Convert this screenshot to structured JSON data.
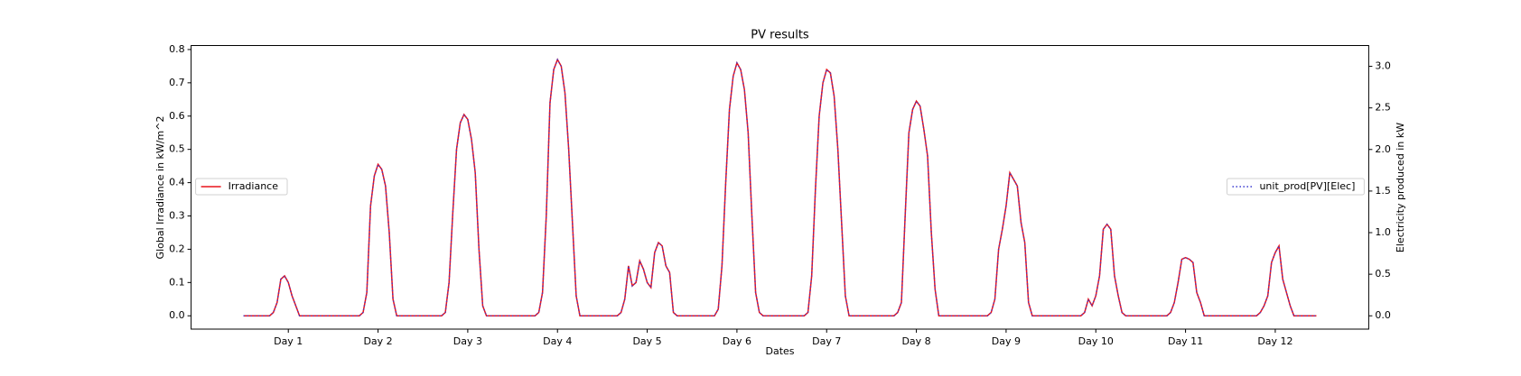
{
  "chart_data": {
    "type": "line",
    "title": "PV results",
    "x_label": "Dates",
    "y_label": "Global Irradiance in kW/m^2",
    "y2_label": "Electricity produced in kW",
    "xlim": [
      -14,
      301
    ],
    "xticks": [
      {
        "value": 12,
        "label": "Day 1"
      },
      {
        "value": 36,
        "label": "Day 2"
      },
      {
        "value": 60,
        "label": "Day 3"
      },
      {
        "value": 84,
        "label": "Day 4"
      },
      {
        "value": 108,
        "label": "Day 5"
      },
      {
        "value": 132,
        "label": "Day 6"
      },
      {
        "value": 156,
        "label": "Day 7"
      },
      {
        "value": 180,
        "label": "Day 8"
      },
      {
        "value": 204,
        "label": "Day 9"
      },
      {
        "value": 228,
        "label": "Day 10"
      },
      {
        "value": 252,
        "label": "Day 11"
      },
      {
        "value": 276,
        "label": "Day 12"
      }
    ],
    "ylim": [
      -0.04,
      0.812
    ],
    "yticks": [
      {
        "value": 0,
        "label": "0.0"
      },
      0.1,
      0.2,
      0.3,
      0.4,
      0.5,
      0.6,
      0.7,
      0.8
    ],
    "y2lim": [
      -0.16,
      3.25
    ],
    "y2ticks": [
      {
        "value": 0,
        "label": "0.0"
      },
      0.5,
      {
        "value": 1,
        "label": "1.0"
      },
      1.5,
      {
        "value": 2,
        "label": "2.0"
      },
      2.5,
      {
        "value": 3,
        "label": "3.0"
      }
    ],
    "series": [
      {
        "name": "Irradiance",
        "color": "#e8141c",
        "style": "solid",
        "axis": "y",
        "legend": "center left",
        "values": [
          0,
          0,
          0,
          0,
          0,
          0,
          0,
          0,
          0.01,
          0.04,
          0.11,
          0.12,
          0.1,
          0.06,
          0.03,
          0,
          0,
          0,
          0,
          0,
          0,
          0,
          0,
          0,
          0,
          0,
          0,
          0,
          0,
          0,
          0,
          0,
          0.01,
          0.07,
          0.33,
          0.42,
          0.455,
          0.44,
          0.39,
          0.25,
          0.05,
          0,
          0,
          0,
          0,
          0,
          0,
          0,
          0,
          0,
          0,
          0,
          0,
          0,
          0.01,
          0.1,
          0.31,
          0.5,
          0.58,
          0.605,
          0.59,
          0.53,
          0.43,
          0.2,
          0.03,
          0,
          0,
          0,
          0,
          0,
          0,
          0,
          0,
          0,
          0,
          0,
          0,
          0,
          0,
          0.01,
          0.07,
          0.3,
          0.64,
          0.74,
          0.77,
          0.75,
          0.67,
          0.5,
          0.28,
          0.06,
          0,
          0,
          0,
          0,
          0,
          0,
          0,
          0,
          0,
          0,
          0,
          0.01,
          0.05,
          0.15,
          0.09,
          0.1,
          0.165,
          0.14,
          0.1,
          0.085,
          0.19,
          0.22,
          0.21,
          0.15,
          0.13,
          0.01,
          0,
          0,
          0,
          0,
          0,
          0,
          0,
          0,
          0,
          0,
          0,
          0.02,
          0.15,
          0.4,
          0.62,
          0.72,
          0.76,
          0.74,
          0.68,
          0.55,
          0.3,
          0.07,
          0.01,
          0,
          0,
          0,
          0,
          0,
          0,
          0,
          0,
          0,
          0,
          0,
          0,
          0.01,
          0.12,
          0.38,
          0.6,
          0.7,
          0.74,
          0.73,
          0.66,
          0.5,
          0.28,
          0.06,
          0,
          0,
          0,
          0,
          0,
          0,
          0,
          0,
          0,
          0,
          0,
          0,
          0,
          0.01,
          0.04,
          0.3,
          0.55,
          0.62,
          0.645,
          0.63,
          0.56,
          0.48,
          0.25,
          0.08,
          0,
          0,
          0,
          0,
          0,
          0,
          0,
          0,
          0,
          0,
          0,
          0,
          0,
          0,
          0.01,
          0.05,
          0.2,
          0.26,
          0.33,
          0.43,
          0.41,
          0.39,
          0.28,
          0.22,
          0.04,
          0,
          0,
          0,
          0,
          0,
          0,
          0,
          0,
          0,
          0,
          0,
          0,
          0,
          0,
          0.01,
          0.05,
          0.03,
          0.06,
          0.12,
          0.26,
          0.275,
          0.26,
          0.12,
          0.06,
          0.01,
          0,
          0,
          0,
          0,
          0,
          0,
          0,
          0,
          0,
          0,
          0,
          0,
          0.01,
          0.04,
          0.1,
          0.17,
          0.175,
          0.17,
          0.16,
          0.07,
          0.04,
          0,
          0,
          0,
          0,
          0,
          0,
          0,
          0,
          0,
          0,
          0,
          0,
          0,
          0,
          0,
          0.01,
          0.03,
          0.06,
          0.16,
          0.19,
          0.21,
          0.11,
          0.07,
          0.03,
          0,
          0,
          0,
          0,
          0,
          0,
          0
        ]
      },
      {
        "name": "unit_prod[PV][Elec]",
        "color": "#3a3ad0",
        "style": "dotted",
        "axis": "y2",
        "legend": "center right",
        "values": [
          0,
          0,
          0,
          0,
          0,
          0,
          0,
          0,
          0.04,
          0.16,
          0.44,
          0.48,
          0.4,
          0.24,
          0.12,
          0,
          0,
          0,
          0,
          0,
          0,
          0,
          0,
          0,
          0,
          0,
          0,
          0,
          0,
          0,
          0,
          0,
          0.04,
          0.28,
          1.32,
          1.68,
          1.82,
          1.76,
          1.56,
          1,
          0.2,
          0,
          0,
          0,
          0,
          0,
          0,
          0,
          0,
          0,
          0,
          0,
          0,
          0,
          0.04,
          0.4,
          1.24,
          2,
          2.32,
          2.42,
          2.36,
          2.12,
          1.72,
          0.8,
          0.12,
          0,
          0,
          0,
          0,
          0,
          0,
          0,
          0,
          0,
          0,
          0,
          0,
          0,
          0,
          0.04,
          0.28,
          1.2,
          2.56,
          2.96,
          3.08,
          3,
          2.68,
          2,
          1.12,
          0.24,
          0,
          0,
          0,
          0,
          0,
          0,
          0,
          0,
          0,
          0,
          0,
          0.04,
          0.2,
          0.6,
          0.36,
          0.4,
          0.66,
          0.56,
          0.4,
          0.34,
          0.76,
          0.88,
          0.84,
          0.6,
          0.52,
          0.04,
          0,
          0,
          0,
          0,
          0,
          0,
          0,
          0,
          0,
          0,
          0,
          0.08,
          0.6,
          1.6,
          2.48,
          2.88,
          3.04,
          2.96,
          2.72,
          2.2,
          1.2,
          0.28,
          0.04,
          0,
          0,
          0,
          0,
          0,
          0,
          0,
          0,
          0,
          0,
          0,
          0,
          0.04,
          0.48,
          1.52,
          2.4,
          2.8,
          2.96,
          2.92,
          2.64,
          2,
          1.12,
          0.24,
          0,
          0,
          0,
          0,
          0,
          0,
          0,
          0,
          0,
          0,
          0,
          0,
          0,
          0.04,
          0.16,
          1.2,
          2.2,
          2.48,
          2.58,
          2.52,
          2.24,
          1.92,
          1,
          0.32,
          0,
          0,
          0,
          0,
          0,
          0,
          0,
          0,
          0,
          0,
          0,
          0,
          0,
          0,
          0.04,
          0.2,
          0.8,
          1.04,
          1.32,
          1.72,
          1.64,
          1.56,
          1.12,
          0.88,
          0.16,
          0,
          0,
          0,
          0,
          0,
          0,
          0,
          0,
          0,
          0,
          0,
          0,
          0,
          0,
          0.04,
          0.2,
          0.12,
          0.24,
          0.48,
          1.04,
          1.1,
          1.04,
          0.48,
          0.24,
          0.04,
          0,
          0,
          0,
          0,
          0,
          0,
          0,
          0,
          0,
          0,
          0,
          0,
          0.04,
          0.16,
          0.4,
          0.68,
          0.7,
          0.68,
          0.64,
          0.28,
          0.16,
          0,
          0,
          0,
          0,
          0,
          0,
          0,
          0,
          0,
          0,
          0,
          0,
          0,
          0,
          0,
          0.04,
          0.12,
          0.24,
          0.64,
          0.76,
          0.84,
          0.44,
          0.28,
          0.12,
          0,
          0,
          0,
          0,
          0,
          0,
          0
        ]
      }
    ]
  }
}
